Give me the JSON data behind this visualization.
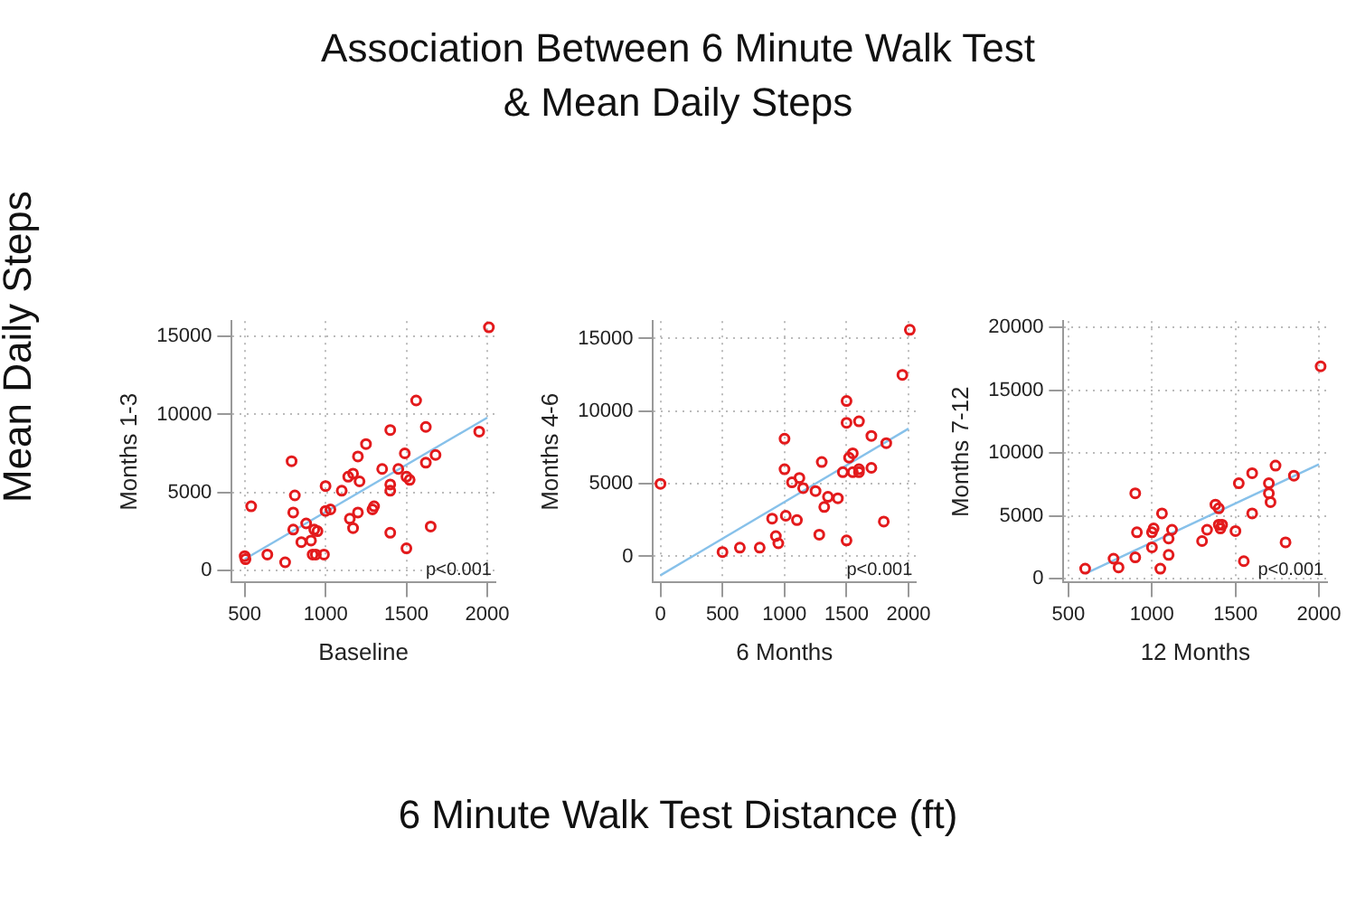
{
  "chart_data": [
    {
      "type": "other",
      "title": "Association Between 6 Minute Walk Test\n& Mean Daily Steps",
      "xlabel": "6 Minute Walk Test Distance (ft)",
      "ylabel": "Mean Daily Steps"
    },
    {
      "type": "scatter",
      "xlabel": "Baseline",
      "ylabel": "Months 1-3",
      "xlim": [
        420,
        2050
      ],
      "ylim": [
        -800,
        16000
      ],
      "xticks": [
        500,
        1000,
        1500,
        2000
      ],
      "yticks": [
        0,
        5000,
        10000,
        15000
      ],
      "grid": true,
      "marker": "circle",
      "annotations": [
        "p<0.001"
      ],
      "series": [
        {
          "type": "scatter",
          "color": "#e31a1c",
          "x": [
            500,
            505,
            540,
            640,
            750,
            790,
            800,
            810,
            800,
            850,
            880,
            910,
            920,
            930,
            950,
            940,
            990,
            1000,
            1000,
            1030,
            1100,
            1140,
            1150,
            1170,
            1170,
            1200,
            1200,
            1210,
            1250,
            1290,
            1300,
            1350,
            1400,
            1400,
            1400,
            1400,
            1450,
            1490,
            1500,
            1500,
            1520,
            1560,
            1620,
            1620,
            1650,
            1680,
            1950,
            2010
          ],
          "values": [
            900,
            700,
            4100,
            1000,
            500,
            7000,
            3700,
            4800,
            2600,
            1800,
            3000,
            1900,
            1000,
            2600,
            2500,
            1000,
            1000,
            5400,
            3800,
            3900,
            5100,
            6000,
            3300,
            6200,
            2700,
            7300,
            3700,
            5700,
            8100,
            3900,
            4100,
            6500,
            9000,
            5500,
            5100,
            2400,
            6500,
            7500,
            1400,
            6000,
            5800,
            10900,
            9200,
            6900,
            2800,
            7400,
            8900,
            15600
          ]
        },
        {
          "type": "line",
          "marker": "none",
          "color": "#87c1ea",
          "x": [
            500,
            2000
          ],
          "values": [
            700,
            9800
          ]
        }
      ]
    },
    {
      "type": "scatter",
      "xlabel": "6 Months",
      "ylabel": "Months 4-6",
      "xlim": [
        -60,
        2060
      ],
      "ylim": [
        -1800,
        16200
      ],
      "xticks": [
        0,
        500,
        1000,
        1500,
        2000
      ],
      "yticks": [
        0,
        5000,
        10000,
        15000
      ],
      "grid": true,
      "marker": "circle",
      "annotations": [
        "p<0.001"
      ],
      "series": [
        {
          "type": "scatter",
          "color": "#e31a1c",
          "x": [
            0,
            500,
            640,
            800,
            900,
            930,
            950,
            1000,
            1000,
            1010,
            1060,
            1100,
            1120,
            1150,
            1250,
            1280,
            1300,
            1320,
            1350,
            1430,
            1470,
            1500,
            1500,
            1500,
            1520,
            1550,
            1550,
            1600,
            1600,
            1600,
            1700,
            1700,
            1800,
            1820,
            1950,
            2010
          ],
          "values": [
            5000,
            300,
            600,
            600,
            2600,
            1400,
            900,
            8100,
            6000,
            2800,
            5100,
            2500,
            5400,
            4700,
            4500,
            1500,
            6500,
            3400,
            4100,
            4000,
            5800,
            10700,
            9200,
            1100,
            6800,
            7100,
            5800,
            9300,
            6000,
            5800,
            8300,
            6100,
            2400,
            7800,
            12500,
            15600
          ]
        },
        {
          "type": "line",
          "marker": "none",
          "color": "#87c1ea",
          "x": [
            0,
            2000
          ],
          "values": [
            -1300,
            8800
          ]
        }
      ]
    },
    {
      "type": "scatter",
      "xlabel": "12 Months",
      "ylabel": "Months 7-12",
      "xlim": [
        470,
        2050
      ],
      "ylim": [
        -300,
        20500
      ],
      "xticks": [
        500,
        1000,
        1500,
        2000
      ],
      "yticks": [
        0,
        5000,
        10000,
        15000,
        20000
      ],
      "grid": true,
      "marker": "circle",
      "annotations": [
        "p<0.001"
      ],
      "series": [
        {
          "type": "scatter",
          "color": "#e31a1c",
          "x": [
            600,
            770,
            800,
            900,
            900,
            910,
            1000,
            1000,
            1010,
            1060,
            1050,
            1100,
            1100,
            1120,
            1300,
            1330,
            1380,
            1400,
            1400,
            1410,
            1420,
            1500,
            1520,
            1550,
            1600,
            1600,
            1700,
            1700,
            1710,
            1740,
            1800,
            1850,
            2010
          ],
          "values": [
            800,
            1600,
            900,
            6800,
            1700,
            3700,
            3700,
            2500,
            4000,
            5200,
            800,
            1900,
            3200,
            3900,
            3000,
            3900,
            5900,
            5600,
            4300,
            4000,
            4300,
            3800,
            7600,
            1400,
            8400,
            5200,
            7600,
            6800,
            6100,
            9000,
            2900,
            8200,
            16900
          ]
        },
        {
          "type": "line",
          "marker": "none",
          "color": "#87c1ea",
          "x": [
            600,
            2000
          ],
          "values": [
            400,
            9100
          ]
        }
      ]
    }
  ]
}
